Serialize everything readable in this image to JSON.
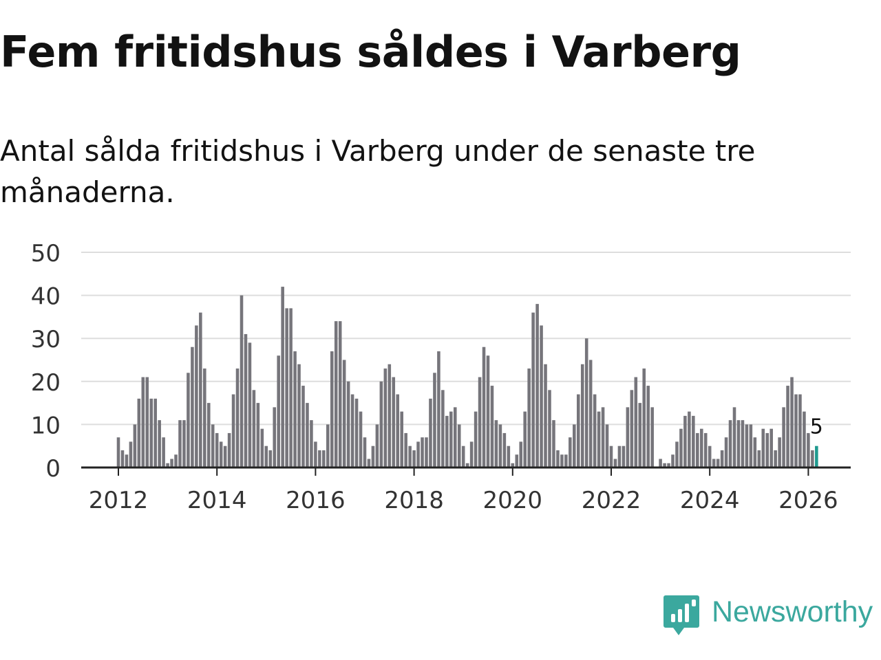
{
  "title": "Fem fritidshus såldes i Varberg",
  "subtitle": "Antal sålda fritidshus i Varberg under de senaste tre månaderna.",
  "logo": {
    "text": "Newsworthy",
    "color": "#3ba89e"
  },
  "colors": {
    "bar": "#76757b",
    "highlight": "#1f9a8f",
    "grid": "#dddddd",
    "axis": "#222222"
  },
  "chart_data": {
    "type": "bar",
    "title": "",
    "xlabel": "",
    "ylabel": "",
    "ylim": [
      0,
      50
    ],
    "yticks": [
      0,
      10,
      20,
      30,
      40,
      50
    ],
    "xtick_labels": [
      "2012",
      "2014",
      "2016",
      "2018",
      "2020",
      "2022",
      "2024",
      "2026"
    ],
    "grid": true,
    "start_month": "2012-01",
    "end_month": "2026-02",
    "highlight_label": "5",
    "values": [
      7,
      4,
      3,
      6,
      10,
      16,
      21,
      21,
      16,
      16,
      11,
      7,
      1,
      2,
      3,
      11,
      11,
      22,
      28,
      33,
      36,
      23,
      15,
      10,
      8,
      6,
      5,
      8,
      17,
      23,
      40,
      31,
      29,
      18,
      15,
      9,
      5,
      4,
      14,
      26,
      42,
      37,
      37,
      27,
      24,
      19,
      15,
      11,
      6,
      4,
      4,
      10,
      27,
      34,
      34,
      25,
      20,
      17,
      16,
      13,
      7,
      2,
      5,
      10,
      20,
      23,
      24,
      21,
      17,
      13,
      8,
      5,
      4,
      6,
      7,
      7,
      16,
      22,
      27,
      18,
      12,
      13,
      14,
      10,
      5,
      1,
      6,
      13,
      21,
      28,
      26,
      19,
      11,
      10,
      8,
      5,
      1,
      3,
      6,
      13,
      23,
      36,
      38,
      33,
      24,
      18,
      11,
      4,
      3,
      3,
      7,
      10,
      17,
      24,
      30,
      25,
      17,
      13,
      14,
      10,
      5,
      2,
      5,
      5,
      14,
      18,
      21,
      15,
      23,
      19,
      14,
      0,
      2,
      1,
      1,
      3,
      6,
      9,
      12,
      13,
      12,
      8,
      9,
      8,
      5,
      2,
      2,
      4,
      7,
      11,
      14,
      11,
      11,
      10,
      10,
      7,
      4,
      9,
      8,
      9,
      4,
      7,
      14,
      19,
      21,
      17,
      17,
      13,
      8,
      4,
      5
    ]
  }
}
